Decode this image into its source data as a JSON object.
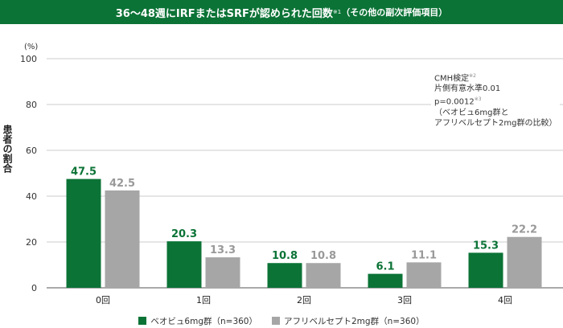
{
  "title": {
    "main": "36～48週にIRFまたはSRFが認められた回数",
    "mark": "※1",
    "sub": "（その他の副次評価項目）"
  },
  "note": {
    "line1": "CMH検定",
    "mark1": "※2",
    "line2": "片側有意水準0.01",
    "line3": "p=0.0012",
    "mark3": "※3",
    "line4": "（ベオビュ6mg群と",
    "line5": "アフリベルセプト2mg群の比較）"
  },
  "chart_data": {
    "type": "bar",
    "categories": [
      "0回",
      "1回",
      "2回",
      "3回",
      "4回"
    ],
    "series": [
      {
        "name": "ベオビュ6mg群（n=360）",
        "values": [
          47.5,
          20.3,
          10.8,
          6.1,
          15.3
        ],
        "color": "#0b7336",
        "label_color": "#0b7336"
      },
      {
        "name": "アフリベルセプト2mg群（n=360）",
        "values": [
          42.5,
          13.3,
          10.8,
          11.1,
          22.2
        ],
        "color": "#a6a6a6",
        "label_color": "#999999"
      }
    ],
    "ylabel": "患者の割合",
    "yunit": "(%)",
    "ylim": [
      0,
      100
    ],
    "yticks": [
      0,
      20,
      40,
      60,
      80,
      100
    ],
    "grid": true,
    "legend": "bottom"
  }
}
